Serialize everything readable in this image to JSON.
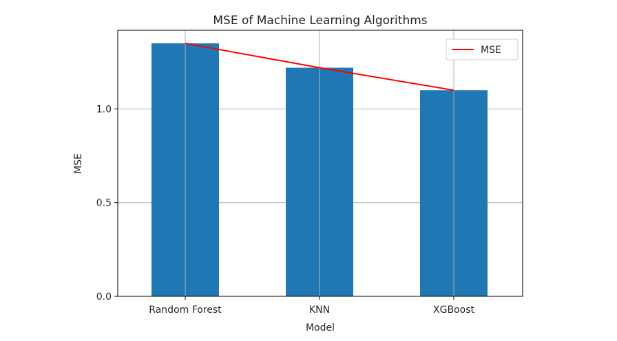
{
  "chart_data": {
    "type": "bar",
    "title": "MSE of Machine Learning Algorithms",
    "xlabel": "Model",
    "ylabel": "MSE",
    "categories": [
      "Random Forest",
      "KNN",
      "XGBoost"
    ],
    "series": [
      {
        "type": "bar",
        "values": [
          1.35,
          1.22,
          1.1
        ],
        "color": "#1f77b4"
      },
      {
        "name": "MSE",
        "type": "line",
        "values": [
          1.35,
          1.22,
          1.1
        ],
        "color": "#ff0000"
      }
    ],
    "ylim": [
      0,
      1.42
    ],
    "yticks": [
      0.0,
      0.5,
      1.0
    ],
    "ytick_labels": [
      "0.0",
      "0.5",
      "1.0"
    ],
    "grid": true,
    "legend_position": "top-right"
  }
}
